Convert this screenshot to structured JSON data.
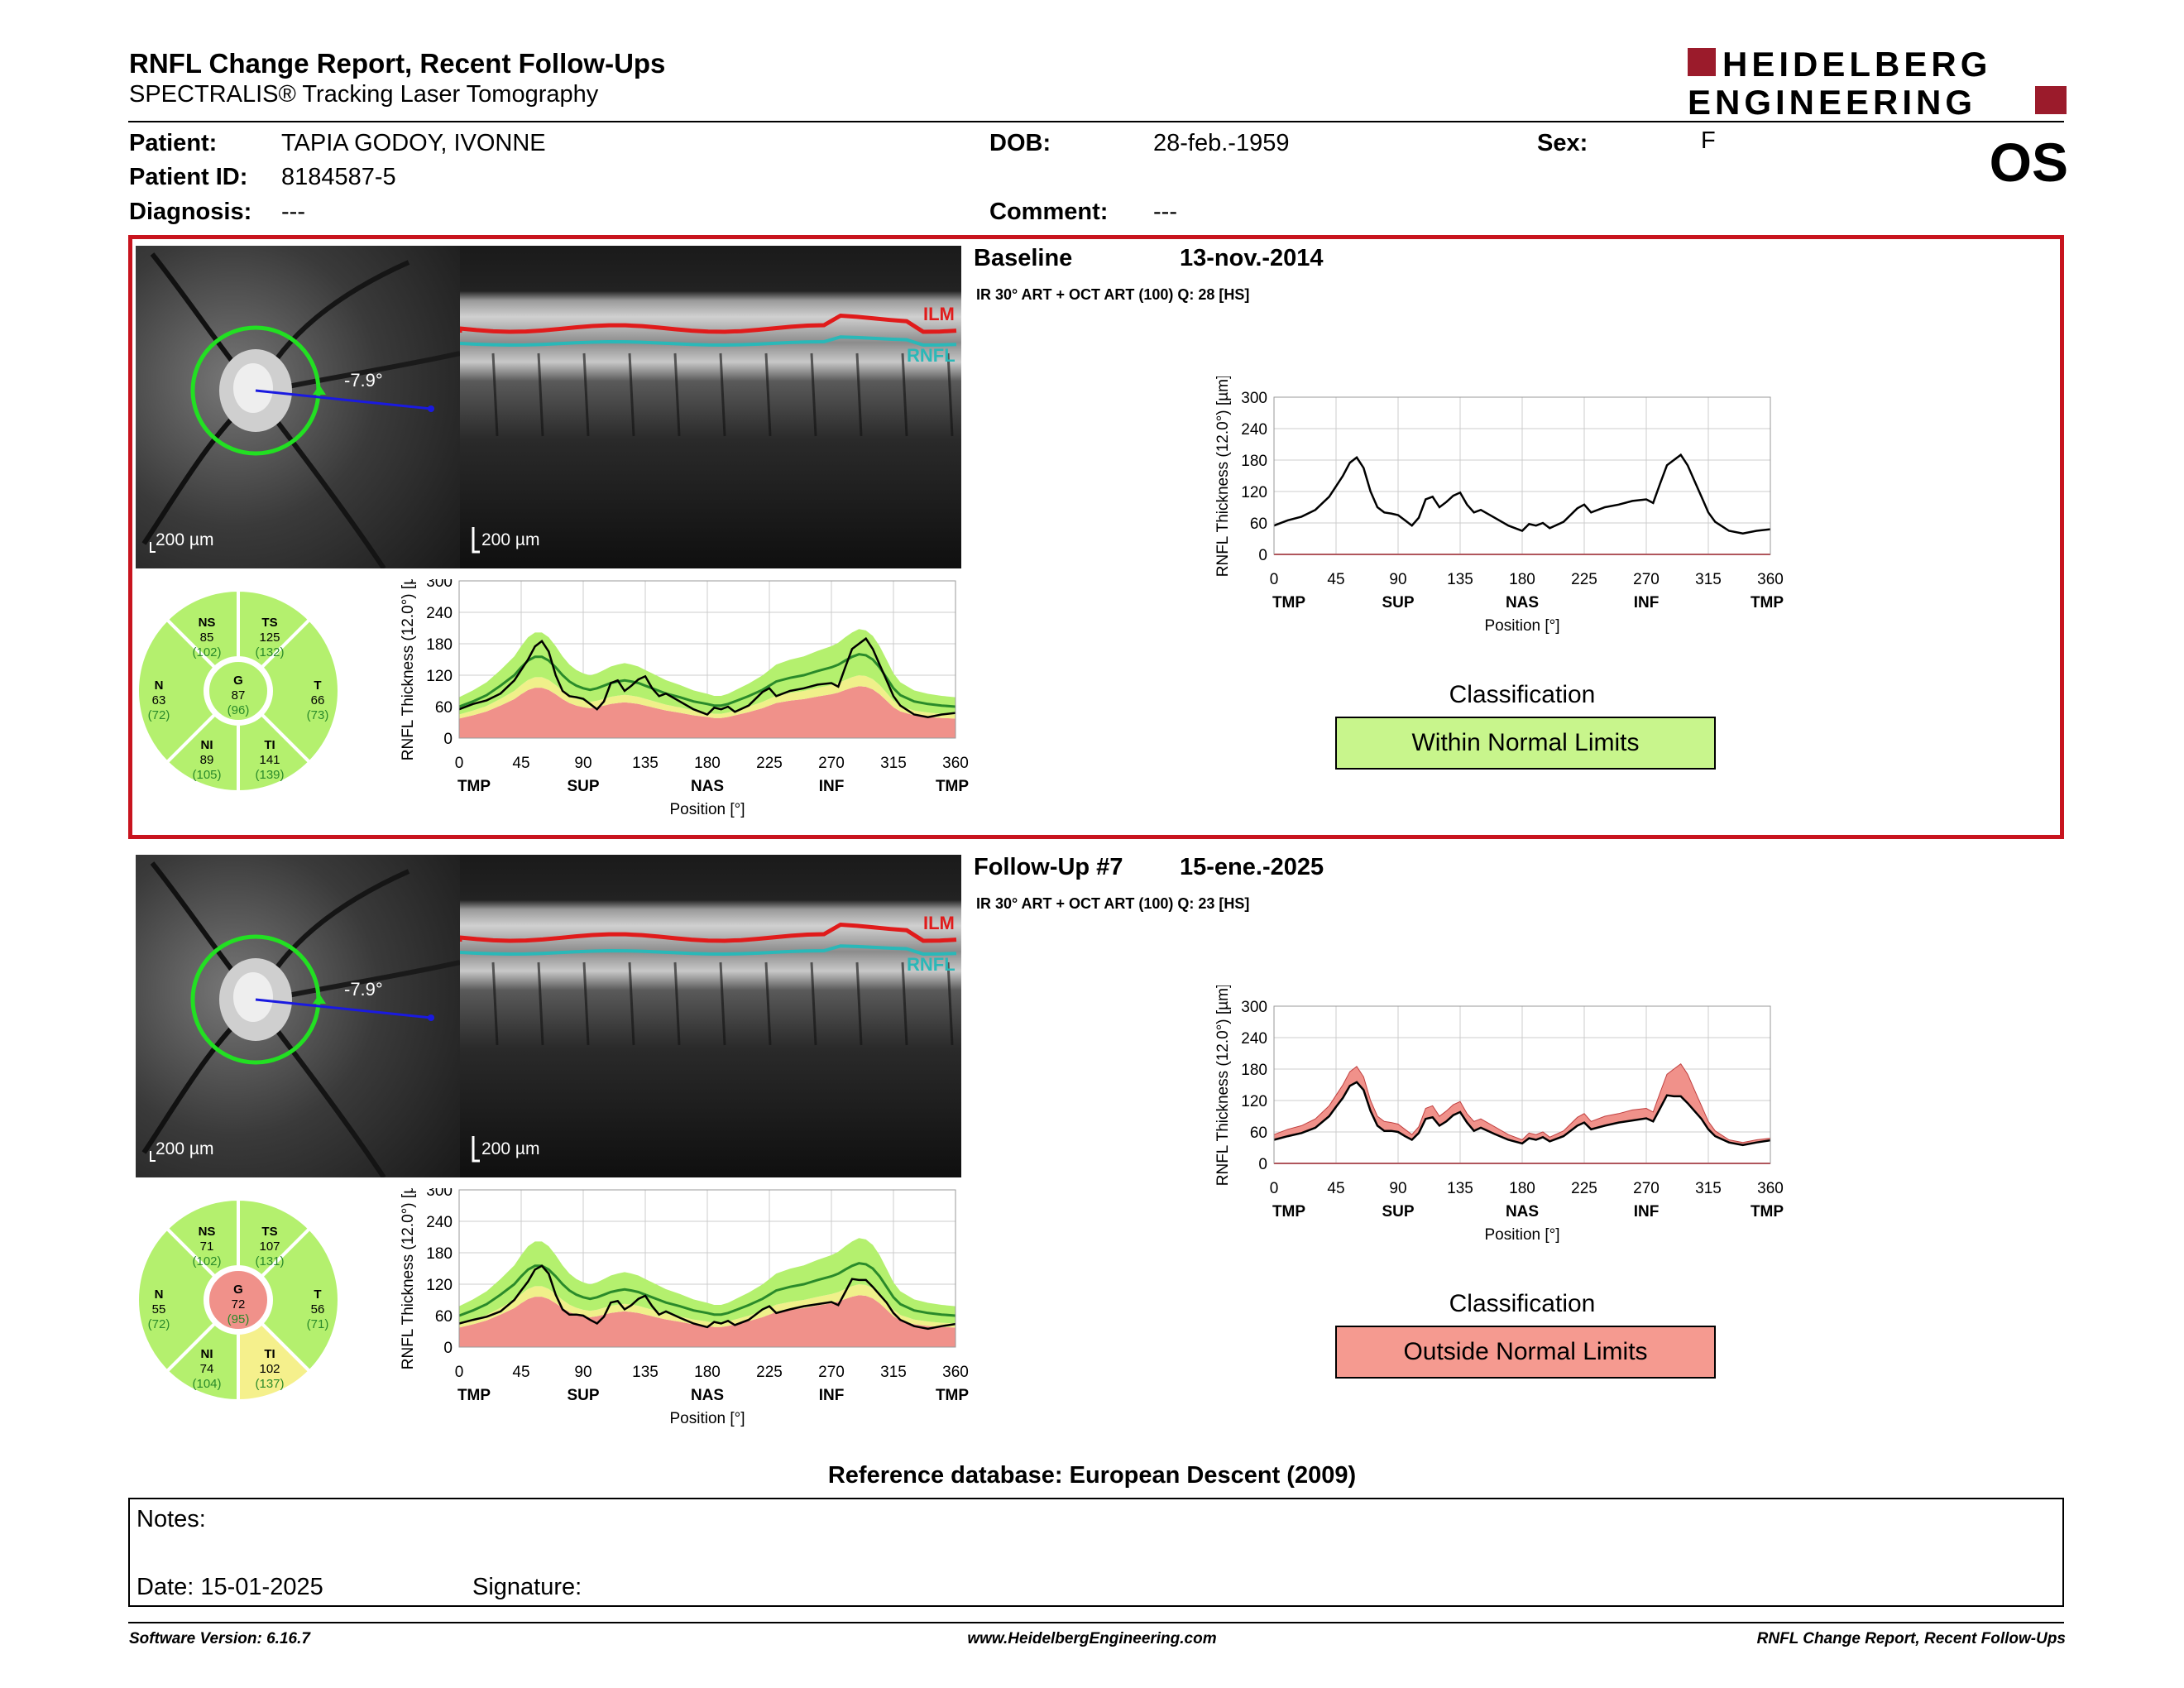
{
  "header": {
    "title": "RNFL Change Report, Recent Follow-Ups",
    "subtitle": "SPECTRALIS® Tracking Laser Tomography",
    "brand_line1": "HEIDELBERG",
    "brand_line2": "ENGINEERING",
    "eye": "OS"
  },
  "patient": {
    "patient_label": "Patient:",
    "patient_value": "TAPIA GODOY, IVONNE",
    "id_label": "Patient ID:",
    "id_value": "8184587-5",
    "diagnosis_label": "Diagnosis:",
    "diagnosis_value": "---",
    "dob_label": "DOB:",
    "dob_value": "28-feb.-1959",
    "comment_label": "Comment:",
    "comment_value": "---",
    "sex_label": "Sex:",
    "sex_value": "F"
  },
  "colors": {
    "normal_green": "#b4f06e",
    "border_yellow": "#f0f08a",
    "outside_red": "#f0918a",
    "accent_red": "#c8141e",
    "ilm": "#e01b1b",
    "rnfl": "#2ab8b8"
  },
  "axis_labels": {
    "x_ticks": [
      "0",
      "45",
      "90",
      "135",
      "180",
      "225",
      "270",
      "315",
      "360"
    ],
    "sectors": [
      "TMP",
      "SUP",
      "NAS",
      "INF",
      "TMP"
    ],
    "xlabel": "Position [°]",
    "ylabel": "RNFL Thickness (12.0°) [µm]",
    "y_ticks": [
      "0",
      "60",
      "120",
      "180",
      "240",
      "300"
    ]
  },
  "scans": [
    {
      "section": "Baseline",
      "date": "13-nov.-2014",
      "acq": "IR 30° ART + OCT ART (100) Q: 28 [HS]",
      "angle": "-7.9°",
      "scale_fundus": "200 µm",
      "scale_oct": "200 µm",
      "ilm_label": "ILM",
      "rnfl_label": "RNFL",
      "classification_title": "Classification",
      "classification": "Within Normal Limits",
      "classification_color": "#c8f58c",
      "sectors": {
        "NS": {
          "label": "NS",
          "value": "85",
          "ref": "(102)",
          "color": "#b4f06e"
        },
        "TS": {
          "label": "TS",
          "value": "125",
          "ref": "(132)",
          "color": "#b4f06e"
        },
        "N": {
          "label": "N",
          "value": "63",
          "ref": "(72)",
          "color": "#b4f06e"
        },
        "G": {
          "label": "G",
          "value": "87",
          "ref": "(96)",
          "color": "#b4f06e"
        },
        "T": {
          "label": "T",
          "value": "66",
          "ref": "(73)",
          "color": "#b4f06e"
        },
        "NI": {
          "label": "NI",
          "value": "89",
          "ref": "(105)",
          "color": "#b4f06e"
        },
        "TI": {
          "label": "TI",
          "value": "141",
          "ref": "(139)",
          "color": "#b4f06e"
        }
      }
    },
    {
      "section": "Follow-Up #7",
      "date": "15-ene.-2025",
      "acq": "IR 30° ART + OCT ART (100) Q: 23 [HS]",
      "angle": "-7.9°",
      "scale_fundus": "200 µm",
      "scale_oct": "200 µm",
      "ilm_label": "ILM",
      "rnfl_label": "RNFL",
      "classification_title": "Classification",
      "classification": "Outside Normal Limits",
      "classification_color": "#f59a90",
      "sectors": {
        "NS": {
          "label": "NS",
          "value": "71",
          "ref": "(102)",
          "color": "#b4f06e"
        },
        "TS": {
          "label": "TS",
          "value": "107",
          "ref": "(131)",
          "color": "#b4f06e"
        },
        "N": {
          "label": "N",
          "value": "55",
          "ref": "(72)",
          "color": "#b4f06e"
        },
        "G": {
          "label": "G",
          "value": "72",
          "ref": "(95)",
          "color": "#f0918a"
        },
        "T": {
          "label": "T",
          "value": "56",
          "ref": "(71)",
          "color": "#b4f06e"
        },
        "NI": {
          "label": "NI",
          "value": "74",
          "ref": "(104)",
          "color": "#b4f06e"
        },
        "TI": {
          "label": "TI",
          "value": "102",
          "ref": "(137)",
          "color": "#f5f08c"
        }
      }
    }
  ],
  "chart_data": [
    {
      "type": "line",
      "title": "",
      "xlabel": "Position [°]",
      "ylabel": "RNFL Thickness (12.0°) [µm]",
      "xlim": [
        0,
        360
      ],
      "ylim": [
        0,
        300
      ],
      "x": [
        0,
        10,
        20,
        30,
        40,
        45,
        50,
        55,
        60,
        65,
        70,
        75,
        80,
        85,
        90,
        95,
        100,
        105,
        110,
        115,
        120,
        125,
        130,
        135,
        140,
        145,
        150,
        160,
        170,
        180,
        185,
        190,
        195,
        200,
        210,
        220,
        225,
        230,
        240,
        250,
        260,
        270,
        275,
        280,
        285,
        290,
        295,
        300,
        305,
        310,
        315,
        320,
        330,
        340,
        350,
        360
      ],
      "series": [
        {
          "name": "Baseline",
          "values": [
            55,
            65,
            72,
            85,
            110,
            130,
            150,
            175,
            185,
            165,
            120,
            90,
            80,
            78,
            75,
            65,
            55,
            70,
            105,
            110,
            90,
            100,
            112,
            118,
            95,
            80,
            85,
            70,
            55,
            45,
            58,
            55,
            60,
            50,
            62,
            88,
            95,
            80,
            90,
            95,
            102,
            105,
            98,
            135,
            170,
            180,
            190,
            170,
            140,
            110,
            80,
            62,
            45,
            40,
            45,
            48
          ]
        }
      ]
    },
    {
      "type": "line",
      "title": "",
      "xlabel": "Position [°]",
      "ylabel": "RNFL Thickness (12.0°) [µm]",
      "xlim": [
        0,
        360
      ],
      "ylim": [
        0,
        300
      ],
      "x": [
        0,
        10,
        20,
        30,
        40,
        45,
        50,
        55,
        60,
        65,
        70,
        75,
        80,
        85,
        90,
        95,
        100,
        105,
        110,
        115,
        120,
        125,
        130,
        135,
        140,
        145,
        150,
        160,
        170,
        180,
        185,
        190,
        195,
        200,
        210,
        220,
        225,
        230,
        240,
        250,
        260,
        270,
        275,
        280,
        285,
        290,
        295,
        300,
        305,
        310,
        315,
        320,
        330,
        340,
        350,
        360
      ],
      "series": [
        {
          "name": "Follow-Up #7",
          "values": [
            45,
            52,
            58,
            68,
            90,
            108,
            125,
            148,
            155,
            140,
            100,
            72,
            62,
            62,
            60,
            52,
            45,
            58,
            85,
            88,
            72,
            80,
            92,
            98,
            78,
            62,
            68,
            56,
            45,
            38,
            48,
            45,
            50,
            42,
            52,
            72,
            78,
            65,
            72,
            78,
            82,
            86,
            80,
            105,
            130,
            128,
            128,
            115,
            100,
            85,
            65,
            52,
            40,
            35,
            40,
            44
          ]
        },
        {
          "name": "Baseline",
          "values": [
            55,
            65,
            72,
            85,
            110,
            130,
            150,
            175,
            185,
            165,
            120,
            90,
            80,
            78,
            75,
            65,
            55,
            70,
            105,
            110,
            90,
            100,
            112,
            118,
            95,
            80,
            85,
            70,
            55,
            45,
            58,
            55,
            60,
            50,
            62,
            88,
            95,
            80,
            90,
            95,
            102,
            105,
            98,
            135,
            170,
            180,
            190,
            170,
            140,
            110,
            80,
            62,
            45,
            40,
            45,
            48
          ]
        }
      ]
    }
  ],
  "profile_data": [
    {
      "x": [
        0,
        10,
        20,
        30,
        40,
        45,
        50,
        55,
        60,
        65,
        70,
        75,
        80,
        85,
        90,
        95,
        100,
        105,
        110,
        115,
        120,
        125,
        130,
        135,
        140,
        145,
        150,
        160,
        170,
        180,
        185,
        190,
        195,
        200,
        210,
        220,
        225,
        230,
        240,
        250,
        260,
        270,
        275,
        280,
        285,
        290,
        295,
        300,
        305,
        310,
        315,
        320,
        330,
        340,
        350,
        360
      ],
      "patient": [
        55,
        65,
        72,
        85,
        110,
        130,
        150,
        175,
        185,
        165,
        120,
        90,
        80,
        78,
        75,
        65,
        55,
        70,
        105,
        110,
        90,
        100,
        112,
        118,
        95,
        80,
        85,
        70,
        55,
        45,
        58,
        55,
        60,
        50,
        62,
        88,
        95,
        80,
        90,
        95,
        102,
        105,
        98,
        135,
        170,
        180,
        190,
        170,
        140,
        110,
        80,
        62,
        45,
        40,
        45,
        48
      ],
      "mean": [
        60,
        70,
        82,
        100,
        120,
        135,
        148,
        155,
        155,
        148,
        135,
        120,
        108,
        100,
        95,
        92,
        95,
        100,
        105,
        108,
        110,
        108,
        105,
        100,
        95,
        90,
        85,
        78,
        70,
        65,
        62,
        62,
        65,
        70,
        80,
        92,
        100,
        108,
        115,
        120,
        128,
        135,
        140,
        148,
        155,
        160,
        158,
        150,
        135,
        115,
        95,
        82,
        70,
        65,
        62,
        60
      ]
    },
    {
      "x": [
        0,
        10,
        20,
        30,
        40,
        45,
        50,
        55,
        60,
        65,
        70,
        75,
        80,
        85,
        90,
        95,
        100,
        105,
        110,
        115,
        120,
        125,
        130,
        135,
        140,
        145,
        150,
        160,
        170,
        180,
        185,
        190,
        195,
        200,
        210,
        220,
        225,
        230,
        240,
        250,
        260,
        270,
        275,
        280,
        285,
        290,
        295,
        300,
        305,
        310,
        315,
        320,
        330,
        340,
        350,
        360
      ],
      "patient": [
        45,
        52,
        58,
        68,
        90,
        108,
        125,
        148,
        155,
        140,
        100,
        72,
        62,
        62,
        60,
        52,
        45,
        58,
        85,
        88,
        72,
        80,
        92,
        98,
        78,
        62,
        68,
        56,
        45,
        38,
        48,
        45,
        50,
        42,
        52,
        72,
        78,
        65,
        72,
        78,
        82,
        86,
        80,
        105,
        130,
        128,
        128,
        115,
        100,
        85,
        65,
        52,
        40,
        35,
        40,
        44
      ],
      "mean": [
        60,
        70,
        82,
        100,
        120,
        135,
        148,
        155,
        155,
        148,
        135,
        120,
        108,
        100,
        95,
        92,
        95,
        100,
        105,
        108,
        110,
        108,
        105,
        100,
        95,
        90,
        85,
        78,
        70,
        65,
        62,
        62,
        65,
        70,
        80,
        92,
        100,
        108,
        115,
        120,
        128,
        135,
        140,
        148,
        155,
        160,
        158,
        150,
        135,
        115,
        95,
        82,
        70,
        65,
        62,
        60
      ]
    }
  ],
  "footer": {
    "refdb": "Reference database: European Descent (2009)",
    "notes_label": "Notes:",
    "date_label": "Date: 15-01-2025",
    "signature_label": "Signature:",
    "software": "Software Version: 6.16.7",
    "website": "www.HeidelbergEngineering.com",
    "report_name": "RNFL Change Report, Recent Follow-Ups"
  }
}
